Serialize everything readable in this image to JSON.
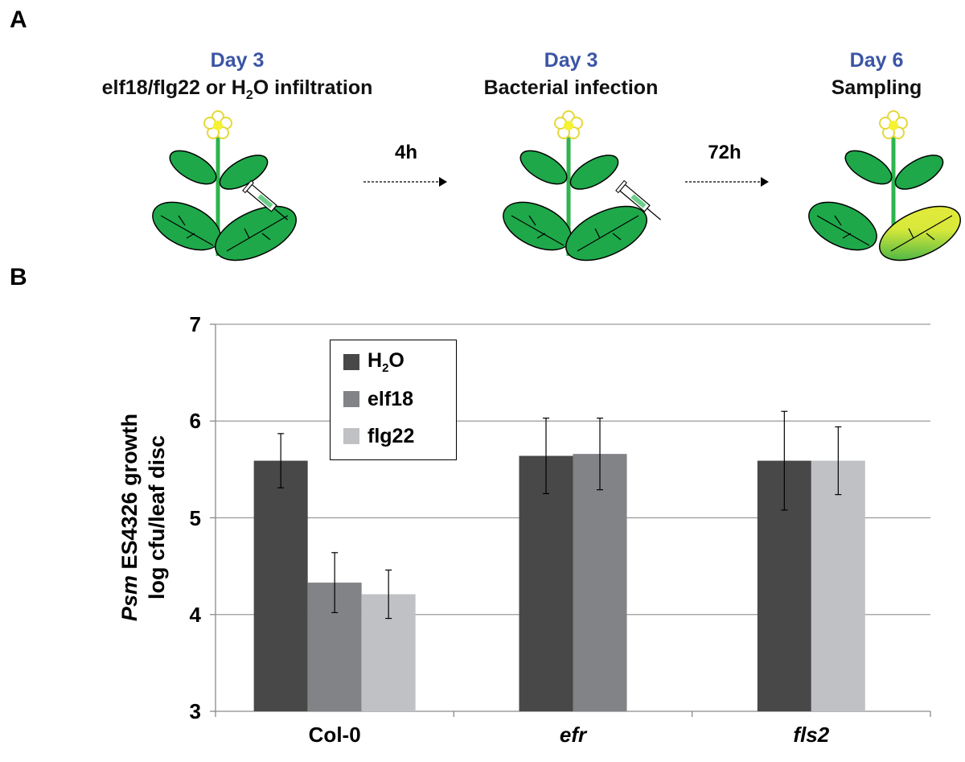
{
  "panels": {
    "a": "A",
    "b": "B"
  },
  "schematic": {
    "steps": [
      {
        "day": "Day 3",
        "desc_pre": "elf18/flg22 or H",
        "desc_sub": "2",
        "desc_post": "O infiltration"
      },
      {
        "day": "Day 3",
        "desc_pre": "Bacterial infection",
        "desc_sub": "",
        "desc_post": ""
      },
      {
        "day": "Day 6",
        "desc_pre": "Sampling",
        "desc_sub": "",
        "desc_post": ""
      }
    ],
    "arrows": [
      "4h",
      "72h"
    ],
    "colors": {
      "leaf": "#1ea84a",
      "stem": "#2db54f",
      "flower": "#f5f232",
      "yellow_leaf": "#d8e83a"
    }
  },
  "chart_data": {
    "type": "bar",
    "categories": [
      "Col-0",
      "efr",
      "fls2"
    ],
    "category_italic": [
      false,
      true,
      true
    ],
    "series": [
      {
        "name_pre": "H",
        "name_sub": "2",
        "name_post": "O",
        "name": "H2O",
        "color": "#484848",
        "values": [
          5.59,
          5.64,
          5.59
        ],
        "errors": [
          0.28,
          0.39,
          0.51
        ]
      },
      {
        "name_pre": "elf18",
        "name_sub": "",
        "name_post": "",
        "name": "elf18",
        "color": "#828386",
        "values": [
          4.33,
          5.66,
          null
        ],
        "errors": [
          0.31,
          0.37,
          null
        ]
      },
      {
        "name_pre": "flg22",
        "name_sub": "",
        "name_post": "",
        "name": "flg22",
        "color": "#c0c1c4",
        "values": [
          4.21,
          null,
          5.59
        ],
        "errors": [
          0.25,
          null,
          0.35
        ]
      }
    ],
    "ylabel_line1_italic": "Psm",
    "ylabel_line1_rest": " ES4326 growth",
    "ylabel_line2": "log cfu/leaf disc",
    "ylim": [
      3,
      7
    ],
    "yticks": [
      "3",
      "4",
      "5",
      "6",
      "7"
    ],
    "grid": true,
    "legend_position": "top-left"
  }
}
